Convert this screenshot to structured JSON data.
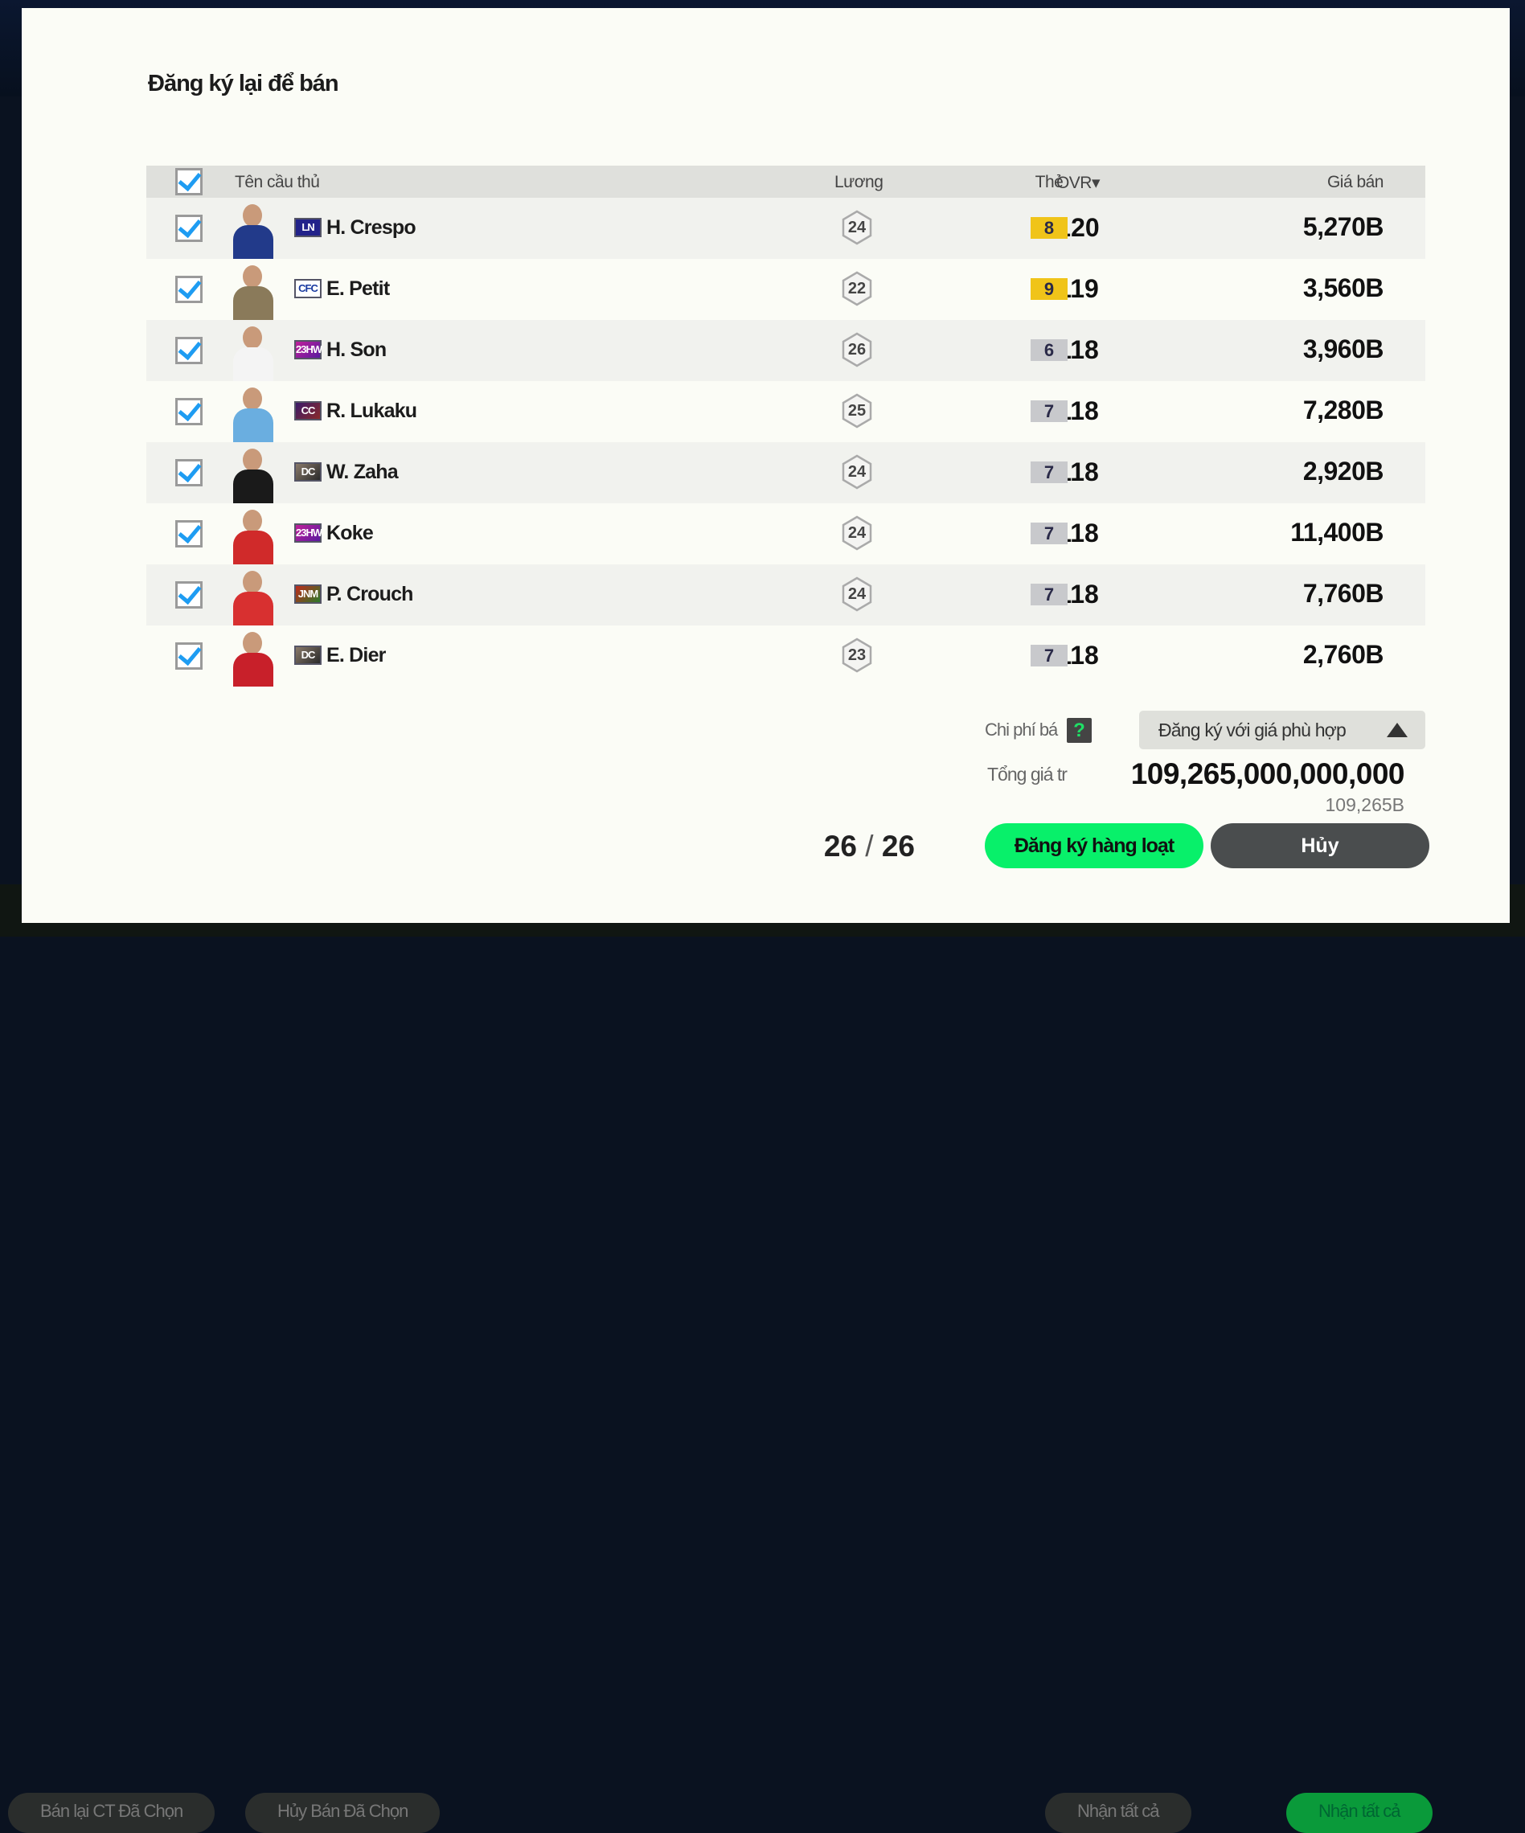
{
  "background": {
    "buttons": [
      "Bán lại CT Đã Chọn",
      "Hủy Bán Đã Chọn",
      "Nhận tất cả",
      "Nhận tất cả"
    ]
  },
  "modal": {
    "title": "Đăng ký lại để bán",
    "table": {
      "headers": {
        "name": "Tên cầu thủ",
        "salary": "Lương",
        "ovr": "OVR▾",
        "card": "Thẻ",
        "price": "Giá bán"
      },
      "select_all_checked": true,
      "rows": [
        {
          "checked": true,
          "season": "LN",
          "name": "H. Crespo",
          "salary": "24",
          "ovr": "120",
          "card": "8",
          "card_color": "#f0c419",
          "price": "5,270B"
        },
        {
          "checked": true,
          "season": "CFC",
          "name": "E. Petit",
          "salary": "22",
          "ovr": "119",
          "card": "9",
          "card_color": "#f0c419",
          "price": "3,560B"
        },
        {
          "checked": true,
          "season": "23HW",
          "name": "H. Son",
          "salary": "26",
          "ovr": "118",
          "card": "6",
          "card_color": "#c8c9cc",
          "price": "3,960B"
        },
        {
          "checked": true,
          "season": "CC",
          "name": "R. Lukaku",
          "salary": "25",
          "ovr": "118",
          "card": "7",
          "card_color": "#c8c9cc",
          "price": "7,280B"
        },
        {
          "checked": true,
          "season": "DC",
          "name": "W. Zaha",
          "salary": "24",
          "ovr": "118",
          "card": "7",
          "card_color": "#c8c9cc",
          "price": "2,920B"
        },
        {
          "checked": true,
          "season": "23HW",
          "name": "Koke",
          "salary": "24",
          "ovr": "118",
          "card": "7",
          "card_color": "#c8c9cc",
          "price": "11,400B"
        },
        {
          "checked": true,
          "season": "JNM",
          "name": "P. Crouch",
          "salary": "24",
          "ovr": "118",
          "card": "7",
          "card_color": "#c8c9cc",
          "price": "7,760B"
        },
        {
          "checked": true,
          "season": "DC",
          "name": "E. Dier",
          "salary": "23",
          "ovr": "118",
          "card": "7",
          "card_color": "#c8c9cc",
          "price": "2,760B"
        }
      ]
    },
    "footer": {
      "cost_label": "Chi phí bá",
      "help_icon": "?",
      "dropdown_value": "Đăng ký với giá phù hợp",
      "total_label": "Tổng giá tr",
      "total_value": "109,265,000,000,000",
      "total_short": "109,265B",
      "count_selected": "26",
      "count_sep": "/",
      "count_total": "26",
      "register_button": "Đăng ký hàng loạt",
      "cancel_button": "Hủy"
    },
    "colors": {
      "accent_green": "#08f06a",
      "check_blue": "#1e9cf2"
    }
  }
}
